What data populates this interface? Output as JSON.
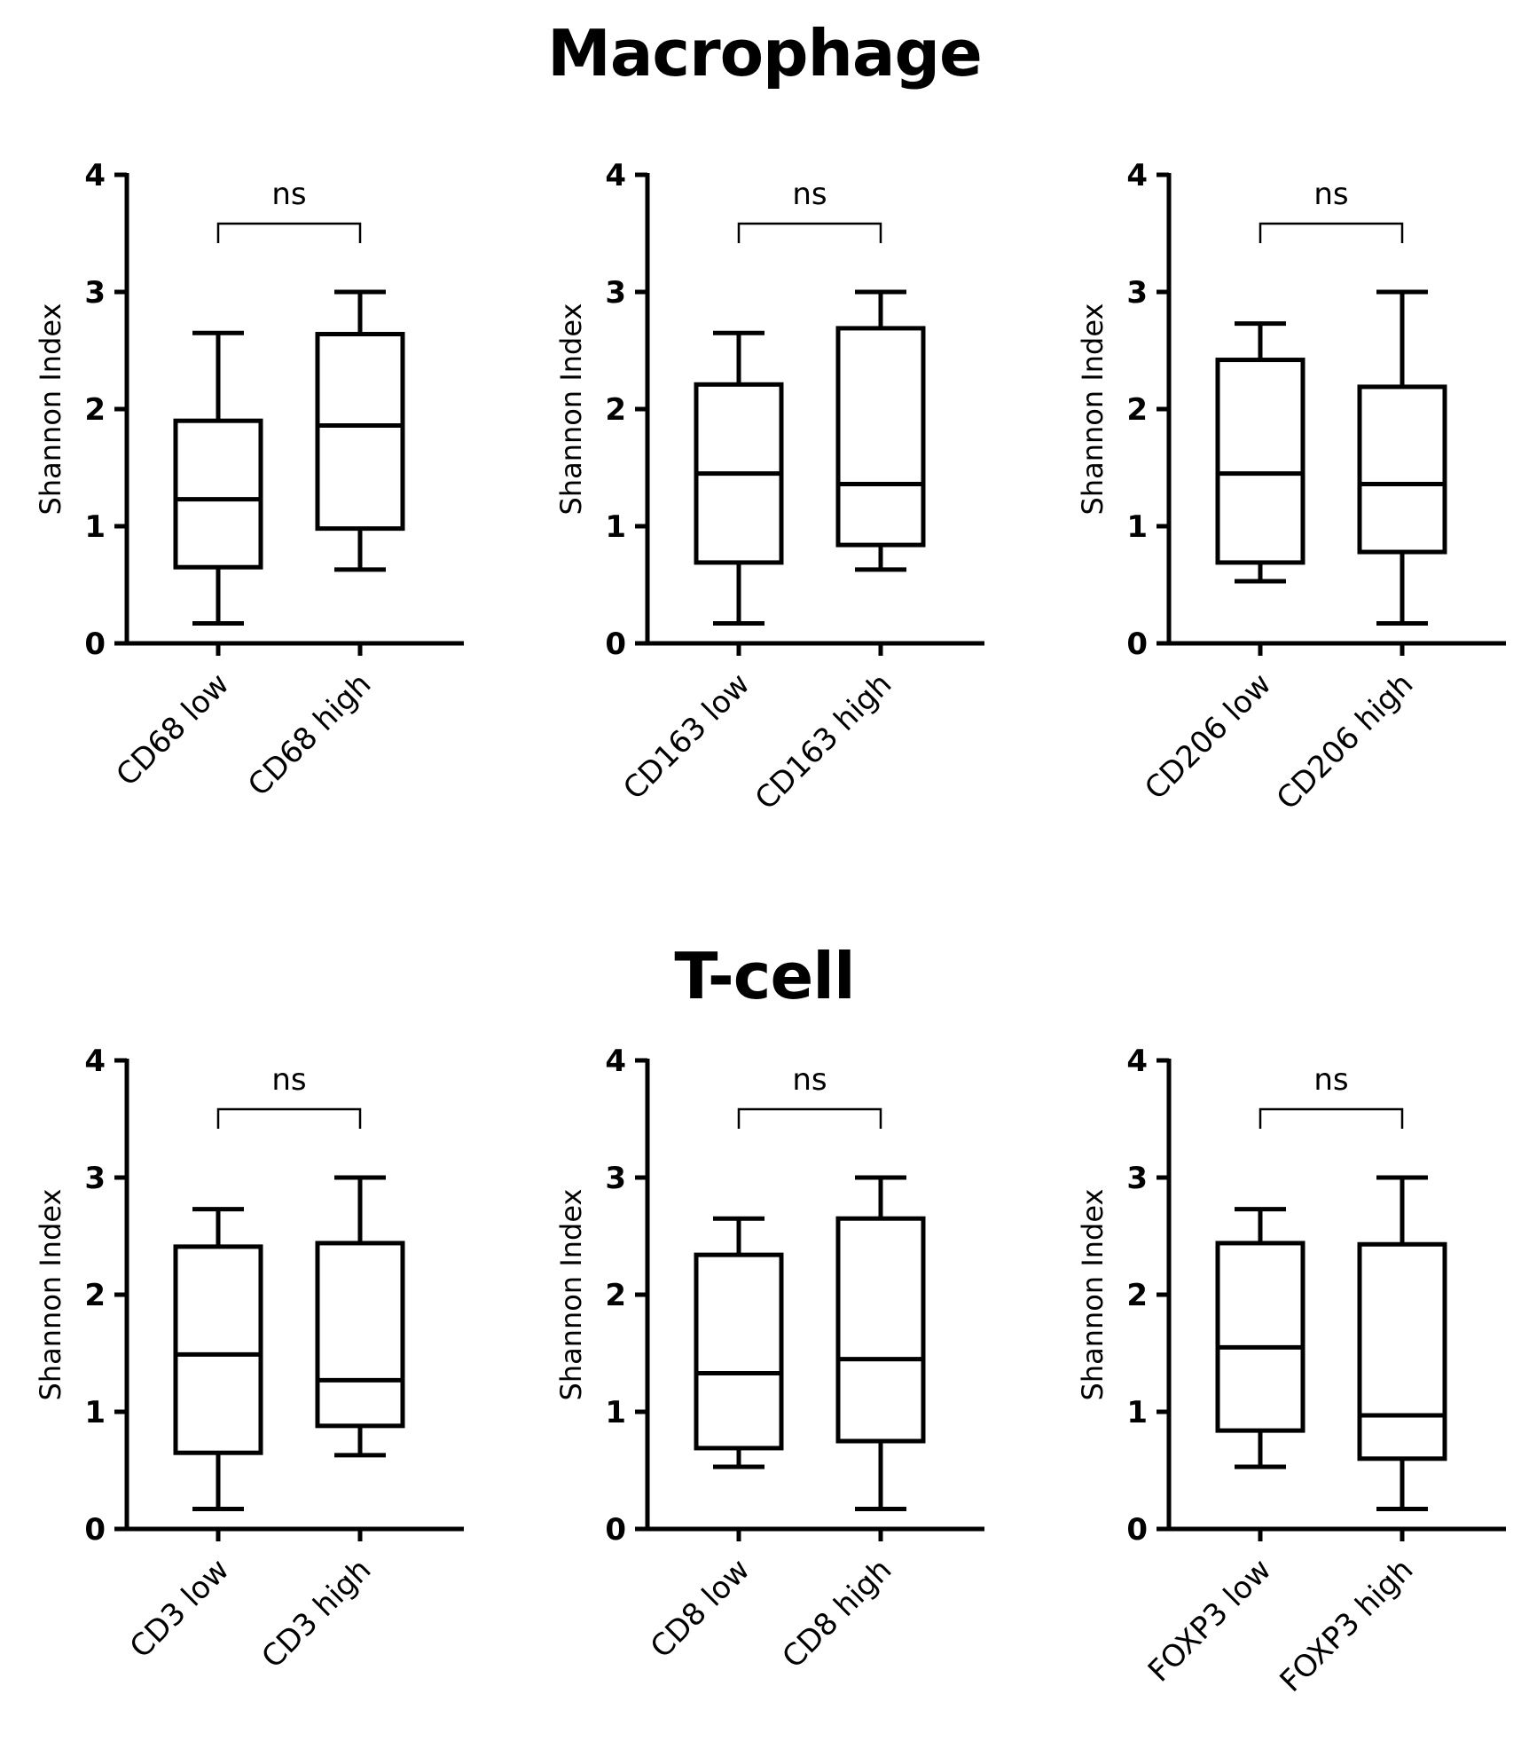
{
  "sections": [
    {
      "title": "Macrophage"
    },
    {
      "title": "T-cell"
    }
  ],
  "chart_data": [
    {
      "type": "box",
      "section": "Macrophage",
      "ylabel": "Shannon Index",
      "ylim": [
        0,
        4
      ],
      "yticks": [
        "0",
        "1",
        "2",
        "3",
        "4"
      ],
      "categories": [
        "CD68 low",
        "CD68 high"
      ],
      "boxes": [
        {
          "min": 0.17,
          "q1": 0.65,
          "median": 1.23,
          "q3": 1.9,
          "max": 2.65
        },
        {
          "min": 0.63,
          "q1": 0.98,
          "median": 1.86,
          "q3": 2.64,
          "max": 3.0
        }
      ],
      "significance": "ns"
    },
    {
      "type": "box",
      "section": "Macrophage",
      "ylabel": "Shannon Index",
      "ylim": [
        0,
        4
      ],
      "yticks": [
        "0",
        "1",
        "2",
        "3",
        "4"
      ],
      "categories": [
        "CD163 low",
        "CD163 high"
      ],
      "boxes": [
        {
          "min": 0.17,
          "q1": 0.69,
          "median": 1.45,
          "q3": 2.21,
          "max": 2.65
        },
        {
          "min": 0.63,
          "q1": 0.84,
          "median": 1.36,
          "q3": 2.69,
          "max": 3.0
        }
      ],
      "significance": "ns"
    },
    {
      "type": "box",
      "section": "Macrophage",
      "ylabel": "Shannon Index",
      "ylim": [
        0,
        4
      ],
      "yticks": [
        "0",
        "1",
        "2",
        "3",
        "4"
      ],
      "categories": [
        "CD206 low",
        "CD206 high"
      ],
      "boxes": [
        {
          "min": 0.53,
          "q1": 0.69,
          "median": 1.45,
          "q3": 2.42,
          "max": 2.73
        },
        {
          "min": 0.17,
          "q1": 0.78,
          "median": 1.36,
          "q3": 2.19,
          "max": 3.0
        }
      ],
      "significance": "ns"
    },
    {
      "type": "box",
      "section": "T-cell",
      "ylabel": "Shannon Index",
      "ylim": [
        0,
        4
      ],
      "yticks": [
        "0",
        "1",
        "2",
        "3",
        "4"
      ],
      "categories": [
        "CD3 low",
        "CD3 high"
      ],
      "boxes": [
        {
          "min": 0.17,
          "q1": 0.65,
          "median": 1.49,
          "q3": 2.41,
          "max": 2.73
        },
        {
          "min": 0.63,
          "q1": 0.88,
          "median": 1.27,
          "q3": 2.44,
          "max": 3.0
        }
      ],
      "significance": "ns"
    },
    {
      "type": "box",
      "section": "T-cell",
      "ylabel": "Shannon Index",
      "ylim": [
        0,
        4
      ],
      "yticks": [
        "0",
        "1",
        "2",
        "3",
        "4"
      ],
      "categories": [
        "CD8 low",
        "CD8 high"
      ],
      "boxes": [
        {
          "min": 0.53,
          "q1": 0.69,
          "median": 1.33,
          "q3": 2.34,
          "max": 2.65
        },
        {
          "min": 0.17,
          "q1": 0.75,
          "median": 1.45,
          "q3": 2.65,
          "max": 3.0
        }
      ],
      "significance": "ns"
    },
    {
      "type": "box",
      "section": "T-cell",
      "ylabel": "Shannon Index",
      "ylim": [
        0,
        4
      ],
      "yticks": [
        "0",
        "1",
        "2",
        "3",
        "4"
      ],
      "categories": [
        "FOXP3 low",
        "FOXP3 high"
      ],
      "boxes": [
        {
          "min": 0.53,
          "q1": 0.84,
          "median": 1.55,
          "q3": 2.44,
          "max": 2.73
        },
        {
          "min": 0.17,
          "q1": 0.6,
          "median": 0.97,
          "q3": 2.43,
          "max": 3.0
        }
      ],
      "significance": "ns"
    }
  ]
}
